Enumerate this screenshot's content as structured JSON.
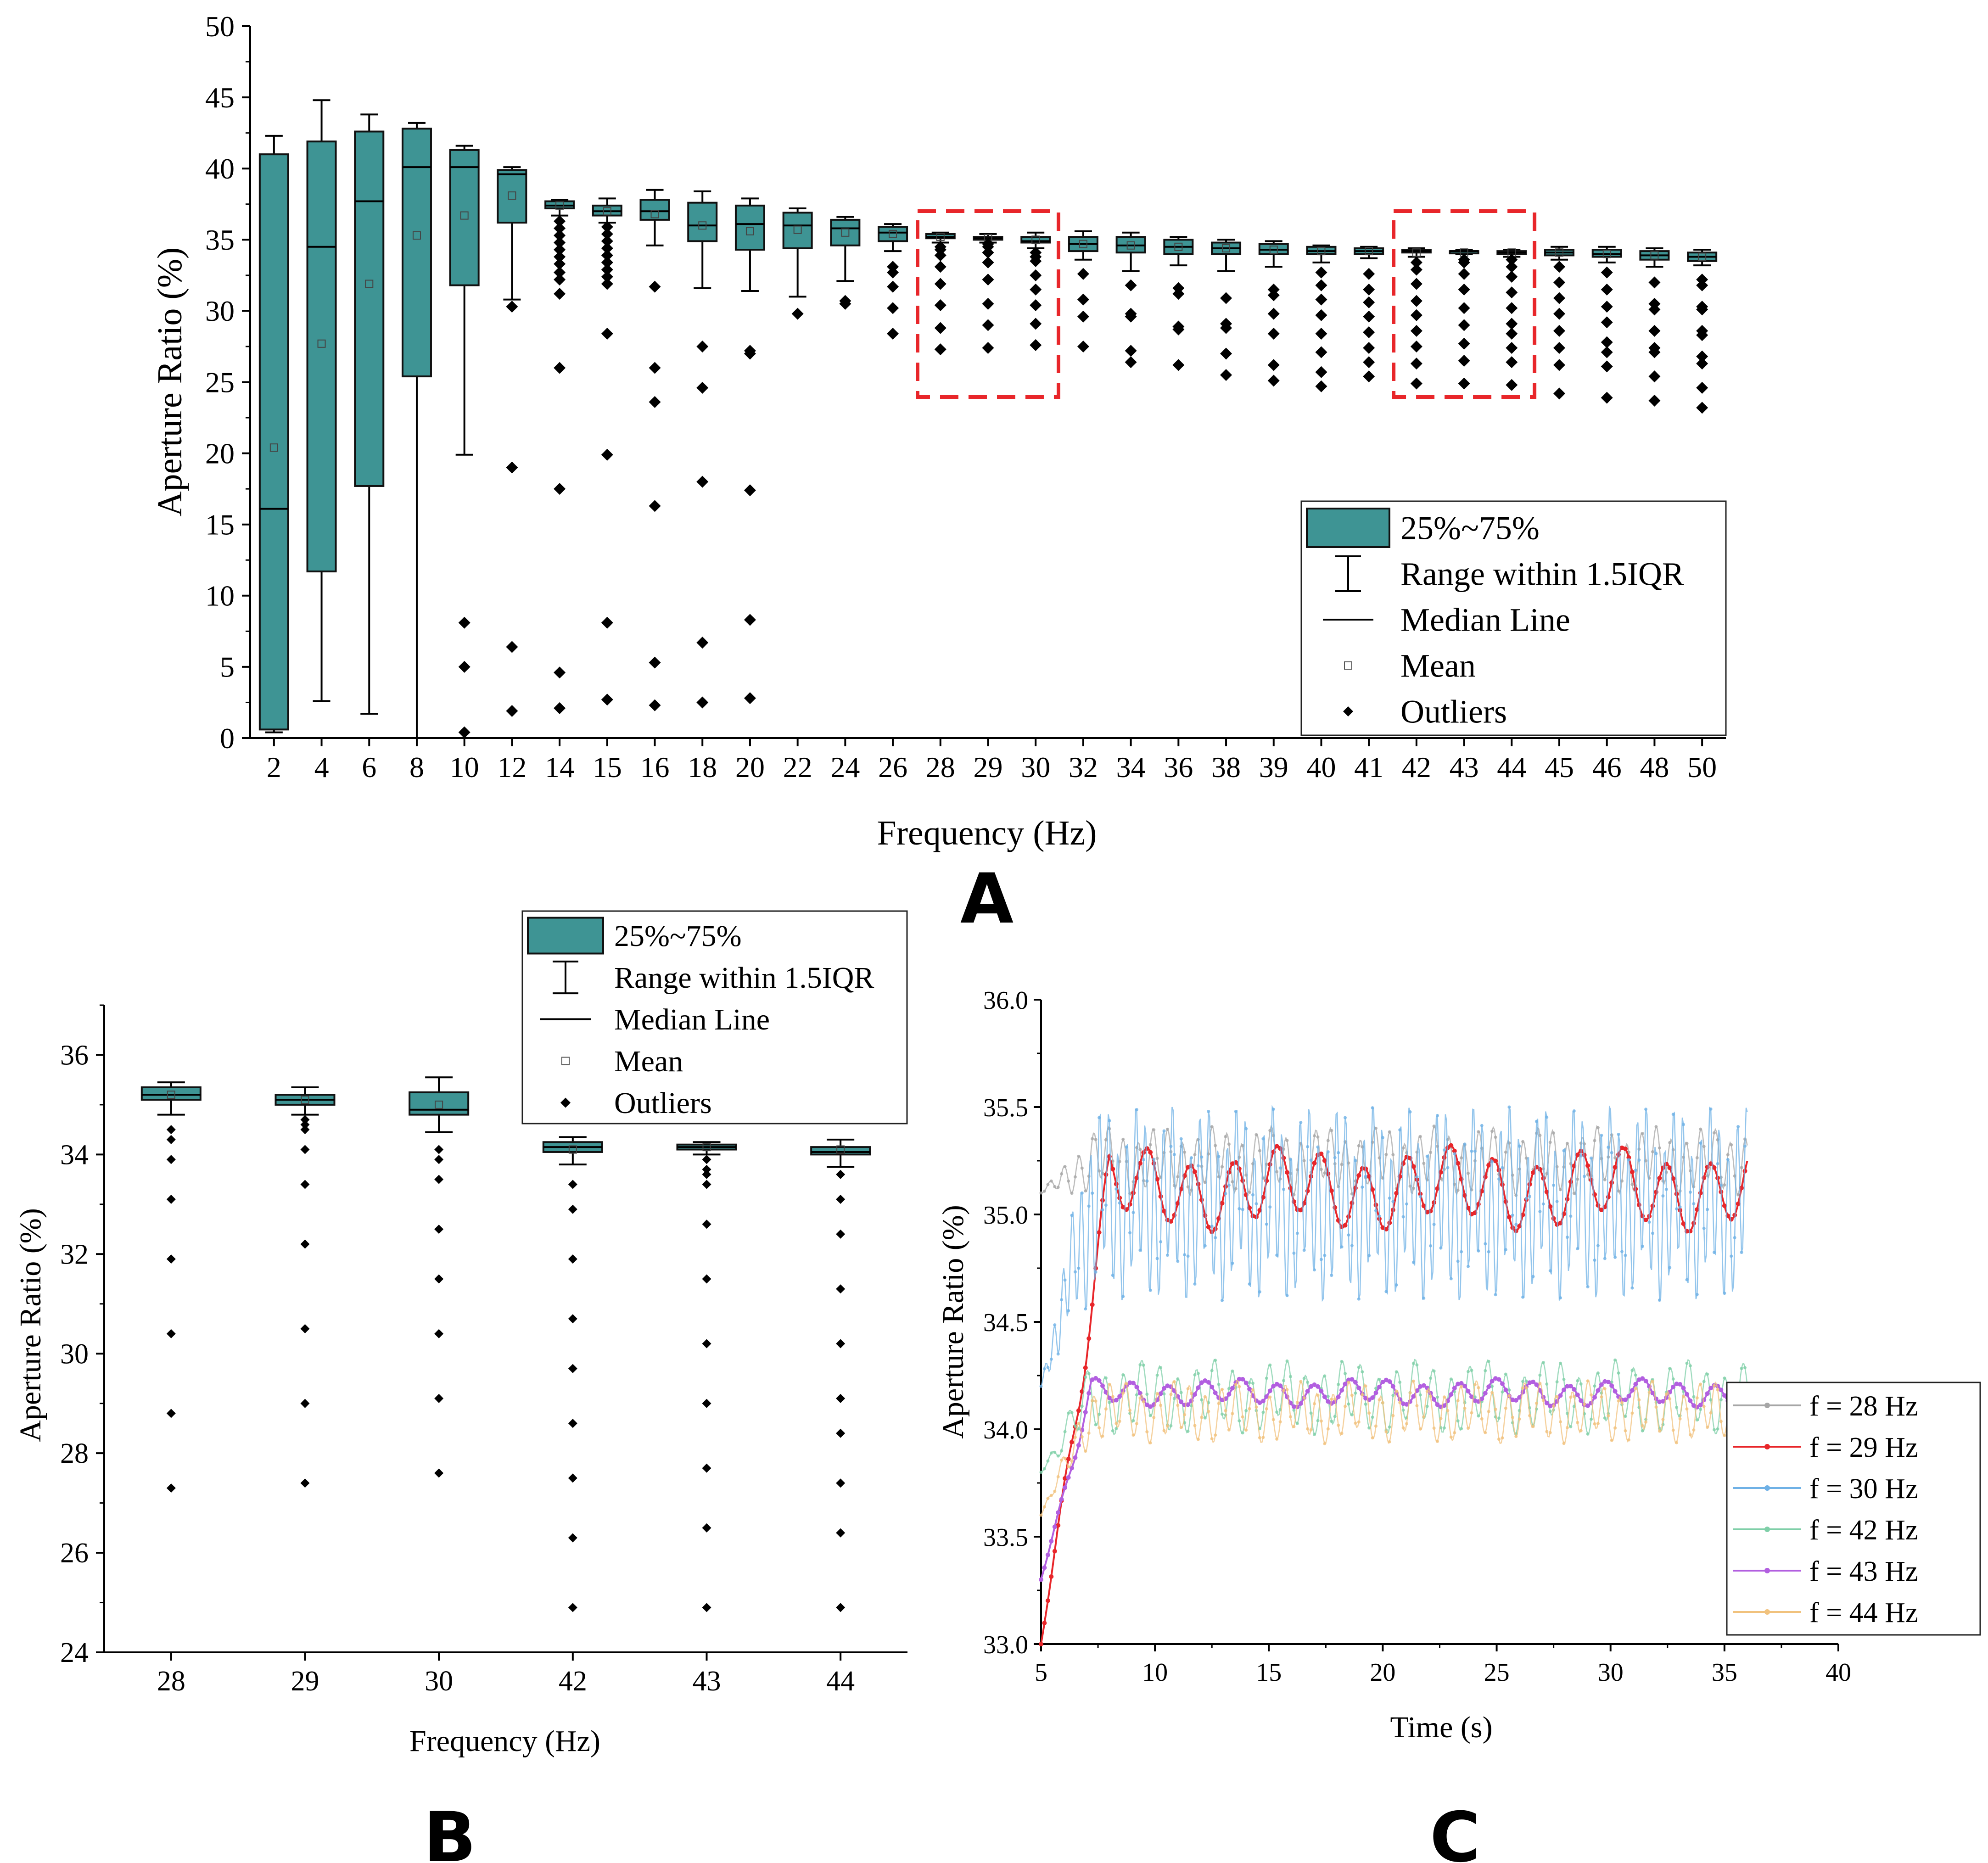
{
  "chart_data": [
    {
      "id": "A",
      "type": "box",
      "xlabel": "Frequency (Hz)",
      "ylabel": "Aperture Ratio (%)",
      "ylim": [
        0,
        50
      ],
      "yticks": [
        "0",
        "5",
        "10",
        "15",
        "20",
        "25",
        "30",
        "35",
        "40",
        "45",
        "50"
      ],
      "categories": [
        "2",
        "4",
        "6",
        "8",
        "10",
        "12",
        "14",
        "15",
        "16",
        "18",
        "20",
        "22",
        "24",
        "26",
        "28",
        "29",
        "30",
        "32",
        "34",
        "36",
        "38",
        "39",
        "40",
        "41",
        "42",
        "43",
        "44",
        "45",
        "46",
        "48",
        "50"
      ],
      "boxes": [
        {
          "q1": 0.6,
          "median": 16.1,
          "q3": 41.0,
          "wlo": 0.4,
          "whi": 42.3,
          "mean": 20.4,
          "outliers": []
        },
        {
          "q1": 11.7,
          "median": 34.5,
          "q3": 41.9,
          "wlo": 2.6,
          "whi": 44.8,
          "mean": 27.7,
          "outliers": []
        },
        {
          "q1": 17.7,
          "median": 37.7,
          "q3": 42.6,
          "wlo": 1.7,
          "whi": 43.8,
          "mean": 31.9,
          "outliers": []
        },
        {
          "q1": 25.4,
          "median": 40.1,
          "q3": 42.8,
          "wlo": 0.0,
          "whi": 43.2,
          "mean": 35.3,
          "outliers": []
        },
        {
          "q1": 31.8,
          "median": 40.1,
          "q3": 41.3,
          "wlo": 19.9,
          "whi": 41.6,
          "mean": 36.7,
          "outliers": [
            8.1,
            5.0,
            0.4
          ]
        },
        {
          "q1": 36.2,
          "median": 39.6,
          "q3": 39.9,
          "wlo": 30.8,
          "whi": 40.1,
          "mean": 38.1,
          "outliers": [
            30.3,
            19.0,
            6.4,
            1.9
          ]
        },
        {
          "q1": 37.2,
          "median": 37.4,
          "q3": 37.7,
          "wlo": 36.7,
          "whi": 37.8,
          "mean": 37.4,
          "outliers": [
            36.3,
            35.8,
            35.3,
            34.8,
            34.3,
            33.8,
            33.3,
            32.7,
            32.2,
            31.2,
            26.0,
            17.5,
            4.6,
            2.1
          ]
        },
        {
          "q1": 36.7,
          "median": 37.0,
          "q3": 37.4,
          "wlo": 36.2,
          "whi": 37.9,
          "mean": 37.0,
          "outliers": [
            35.9,
            35.4,
            34.9,
            34.4,
            33.9,
            33.4,
            32.9,
            32.4,
            31.9,
            28.4,
            19.9,
            8.1,
            2.7
          ]
        },
        {
          "q1": 36.4,
          "median": 37.0,
          "q3": 37.8,
          "wlo": 34.6,
          "whi": 38.5,
          "mean": 36.8,
          "outliers": [
            31.7,
            26.0,
            23.6,
            16.3,
            5.3,
            2.3
          ]
        },
        {
          "q1": 34.9,
          "median": 36.0,
          "q3": 37.6,
          "wlo": 31.6,
          "whi": 38.4,
          "mean": 36.0,
          "outliers": [
            27.5,
            24.6,
            18.0,
            6.7,
            2.5
          ]
        },
        {
          "q1": 34.3,
          "median": 36.1,
          "q3": 37.4,
          "wlo": 31.4,
          "whi": 37.9,
          "mean": 35.6,
          "outliers": [
            27.2,
            27.0,
            17.4,
            8.3,
            2.8
          ]
        },
        {
          "q1": 34.4,
          "median": 36.0,
          "q3": 36.9,
          "wlo": 31.0,
          "whi": 37.2,
          "mean": 35.7,
          "outliers": [
            29.8
          ]
        },
        {
          "q1": 34.6,
          "median": 35.8,
          "q3": 36.4,
          "wlo": 32.1,
          "whi": 36.6,
          "mean": 35.5,
          "outliers": [
            30.7,
            30.5
          ]
        },
        {
          "q1": 34.9,
          "median": 35.5,
          "q3": 35.9,
          "wlo": 34.2,
          "whi": 36.1,
          "mean": 35.4,
          "outliers": [
            33.1,
            32.7,
            31.7,
            30.2,
            28.4
          ]
        },
        {
          "q1": 35.1,
          "median": 35.2,
          "q3": 35.4,
          "wlo": 34.8,
          "whi": 35.5,
          "mean": 35.2,
          "outliers": [
            34.5,
            34.3,
            33.9,
            33.1,
            31.9,
            30.4,
            28.8,
            27.3
          ]
        },
        {
          "q1": 35.0,
          "median": 35.1,
          "q3": 35.2,
          "wlo": 34.8,
          "whi": 35.4,
          "mean": 35.1,
          "outliers": [
            34.7,
            34.5,
            34.1,
            33.4,
            32.2,
            30.5,
            29.0,
            27.4
          ]
        },
        {
          "q1": 34.8,
          "median": 34.9,
          "q3": 35.2,
          "wlo": 34.4,
          "whi": 35.5,
          "mean": 35.0,
          "outliers": [
            34.1,
            33.8,
            33.5,
            32.5,
            31.5,
            30.4,
            29.1,
            27.6
          ]
        },
        {
          "q1": 34.2,
          "median": 34.7,
          "q3": 35.2,
          "wlo": 33.6,
          "whi": 35.6,
          "mean": 34.7,
          "outliers": [
            32.6,
            30.8,
            29.6,
            27.5
          ]
        },
        {
          "q1": 34.1,
          "median": 34.6,
          "q3": 35.2,
          "wlo": 32.8,
          "whi": 35.5,
          "mean": 34.6,
          "outliers": [
            31.8,
            29.8,
            29.6,
            27.2,
            26.4
          ]
        },
        {
          "q1": 34.0,
          "median": 34.5,
          "q3": 35.0,
          "wlo": 33.2,
          "whi": 35.2,
          "mean": 34.5,
          "outliers": [
            31.6,
            31.2,
            28.9,
            28.7,
            26.2
          ]
        },
        {
          "q1": 34.0,
          "median": 34.4,
          "q3": 34.8,
          "wlo": 32.8,
          "whi": 35.0,
          "mean": 34.4,
          "outliers": [
            30.9,
            29.1,
            28.8,
            27.0,
            25.5
          ]
        },
        {
          "q1": 34.0,
          "median": 34.3,
          "q3": 34.7,
          "wlo": 33.1,
          "whi": 34.9,
          "mean": 34.3,
          "outliers": [
            31.5,
            31.1,
            29.8,
            28.4,
            26.2,
            25.1
          ]
        },
        {
          "q1": 34.0,
          "median": 34.2,
          "q3": 34.5,
          "wlo": 33.4,
          "whi": 34.6,
          "mean": 34.2,
          "outliers": [
            32.7,
            31.8,
            30.8,
            29.7,
            28.4,
            27.1,
            25.7,
            24.7
          ]
        },
        {
          "q1": 34.0,
          "median": 34.2,
          "q3": 34.4,
          "wlo": 33.7,
          "whi": 34.5,
          "mean": 34.2,
          "outliers": [
            32.6,
            31.5,
            30.6,
            29.6,
            28.5,
            27.4,
            26.4,
            25.4
          ]
        },
        {
          "q1": 34.1,
          "median": 34.2,
          "q3": 34.3,
          "wlo": 33.8,
          "whi": 34.4,
          "mean": 34.1,
          "outliers": [
            33.4,
            32.9,
            31.9,
            30.7,
            29.7,
            28.6,
            27.5,
            26.3,
            24.9
          ]
        },
        {
          "q1": 34.1,
          "median": 34.2,
          "q3": 34.2,
          "wlo": 34.0,
          "whi": 34.3,
          "mean": 34.1,
          "outliers": [
            33.6,
            33.4,
            32.6,
            31.5,
            30.2,
            29.0,
            27.7,
            26.5,
            24.9
          ]
        },
        {
          "q1": 34.0,
          "median": 34.1,
          "q3": 34.2,
          "wlo": 33.8,
          "whi": 34.3,
          "mean": 34.1,
          "outliers": [
            33.6,
            33.1,
            32.4,
            31.3,
            30.2,
            29.1,
            28.4,
            27.4,
            26.4,
            24.8
          ]
        },
        {
          "q1": 33.9,
          "median": 34.1,
          "q3": 34.3,
          "wlo": 33.6,
          "whi": 34.5,
          "mean": 34.1,
          "outliers": [
            33.1,
            32.0,
            30.9,
            29.8,
            28.6,
            27.4,
            26.2,
            24.2
          ]
        },
        {
          "q1": 33.8,
          "median": 34.0,
          "q3": 34.3,
          "wlo": 33.4,
          "whi": 34.5,
          "mean": 34.0,
          "outliers": [
            32.7,
            31.5,
            30.3,
            29.2,
            27.8,
            27.1,
            26.1,
            23.9
          ]
        },
        {
          "q1": 33.6,
          "median": 33.9,
          "q3": 34.2,
          "wlo": 33.1,
          "whi": 34.4,
          "mean": 33.9,
          "outliers": [
            32.0,
            30.5,
            30.1,
            28.6,
            27.4,
            27.1,
            25.4,
            23.7
          ]
        },
        {
          "q1": 33.5,
          "median": 33.8,
          "q3": 34.1,
          "wlo": 33.2,
          "whi": 34.3,
          "mean": 33.8,
          "outliers": [
            32.2,
            31.8,
            30.3,
            30.1,
            28.6,
            28.3,
            26.8,
            26.3,
            24.6,
            23.2
          ]
        }
      ],
      "highlight_groups": [
        [
          "28",
          "30"
        ],
        [
          "42",
          "44"
        ]
      ],
      "legend": [
        "25%~75%",
        "Range within 1.5IQR",
        "Median Line",
        "Mean",
        "Outliers"
      ],
      "panel_label": "A"
    },
    {
      "id": "B",
      "type": "box",
      "xlabel": "Frequency (Hz)",
      "ylabel": "Aperture Ratio (%)",
      "ylim": [
        24,
        37
      ],
      "yticks": [
        "24",
        "26",
        "28",
        "30",
        "32",
        "34",
        "36"
      ],
      "categories": [
        "28",
        "29",
        "30",
        "42",
        "43",
        "44"
      ],
      "boxes": [
        {
          "q1": 35.1,
          "median": 35.2,
          "q3": 35.35,
          "wlo": 34.8,
          "whi": 35.45,
          "mean": 35.2,
          "outliers": [
            34.5,
            34.3,
            33.9,
            33.1,
            31.9,
            30.4,
            28.8,
            27.3
          ]
        },
        {
          "q1": 35.0,
          "median": 35.1,
          "q3": 35.2,
          "wlo": 34.8,
          "whi": 35.35,
          "mean": 35.1,
          "outliers": [
            34.7,
            34.6,
            34.5,
            34.1,
            33.4,
            32.2,
            30.5,
            29.0,
            27.4
          ]
        },
        {
          "q1": 34.8,
          "median": 34.9,
          "q3": 35.25,
          "wlo": 34.45,
          "whi": 35.55,
          "mean": 35.0,
          "outliers": [
            34.1,
            33.9,
            33.5,
            32.5,
            31.5,
            30.4,
            29.1,
            27.6
          ]
        },
        {
          "q1": 34.05,
          "median": 34.15,
          "q3": 34.25,
          "wlo": 33.8,
          "whi": 34.35,
          "mean": 34.1,
          "outliers": [
            33.4,
            32.9,
            31.9,
            30.7,
            29.7,
            28.6,
            27.5,
            26.3,
            24.9
          ]
        },
        {
          "q1": 34.1,
          "median": 34.15,
          "q3": 34.2,
          "wlo": 34.0,
          "whi": 34.25,
          "mean": 34.15,
          "outliers": [
            33.9,
            33.7,
            33.6,
            33.4,
            32.6,
            31.5,
            30.2,
            29.0,
            27.7,
            26.5,
            24.9
          ]
        },
        {
          "q1": 34.0,
          "median": 34.05,
          "q3": 34.15,
          "wlo": 33.75,
          "whi": 34.3,
          "mean": 34.1,
          "outliers": [
            33.6,
            33.1,
            32.4,
            31.3,
            30.2,
            29.1,
            28.4,
            27.4,
            26.4,
            24.9
          ]
        }
      ],
      "legend": [
        "25%~75%",
        "Range within 1.5IQR",
        "Median Line",
        "Mean",
        "Outliers"
      ],
      "panel_label": "B"
    },
    {
      "id": "C",
      "type": "line",
      "xlabel": "Time (s)",
      "ylabel": "Aperture Ratio (%)",
      "xlim": [
        5,
        40
      ],
      "ylim": [
        33.0,
        36.0
      ],
      "xticks": [
        "5",
        "10",
        "15",
        "20",
        "25",
        "30",
        "35",
        "40"
      ],
      "yticks": [
        "33.0",
        "33.5",
        "34.0",
        "34.5",
        "35.0",
        "35.5",
        "36.0"
      ],
      "t_range": [
        5,
        36
      ],
      "series": [
        {
          "name": "f = 28 Hz",
          "color": "#a6a6a6",
          "baseline": 35.25,
          "amplitude": 0.12,
          "period": 0.65,
          "start": 35.1
        },
        {
          "name": "f = 29 Hz",
          "color": "#e8262a",
          "baseline": 35.12,
          "amplitude": 0.15,
          "period": 1.9,
          "start": 33.0
        },
        {
          "name": "f = 30 Hz",
          "color": "#6fb1e6",
          "baseline": 35.05,
          "amplitude": 0.35,
          "period": 0.4,
          "start": 34.2
        },
        {
          "name": "f = 42 Hz",
          "color": "#7fcfa8",
          "baseline": 34.15,
          "amplitude": 0.13,
          "period": 0.8,
          "start": 33.8
        },
        {
          "name": "f = 43 Hz",
          "color": "#b25fe0",
          "baseline": 34.17,
          "amplitude": 0.05,
          "period": 1.6,
          "start": 33.3
        },
        {
          "name": "f = 44 Hz",
          "color": "#f1c27d",
          "baseline": 34.08,
          "amplitude": 0.11,
          "period": 0.7,
          "start": 33.6
        }
      ],
      "panel_label": "C"
    }
  ]
}
